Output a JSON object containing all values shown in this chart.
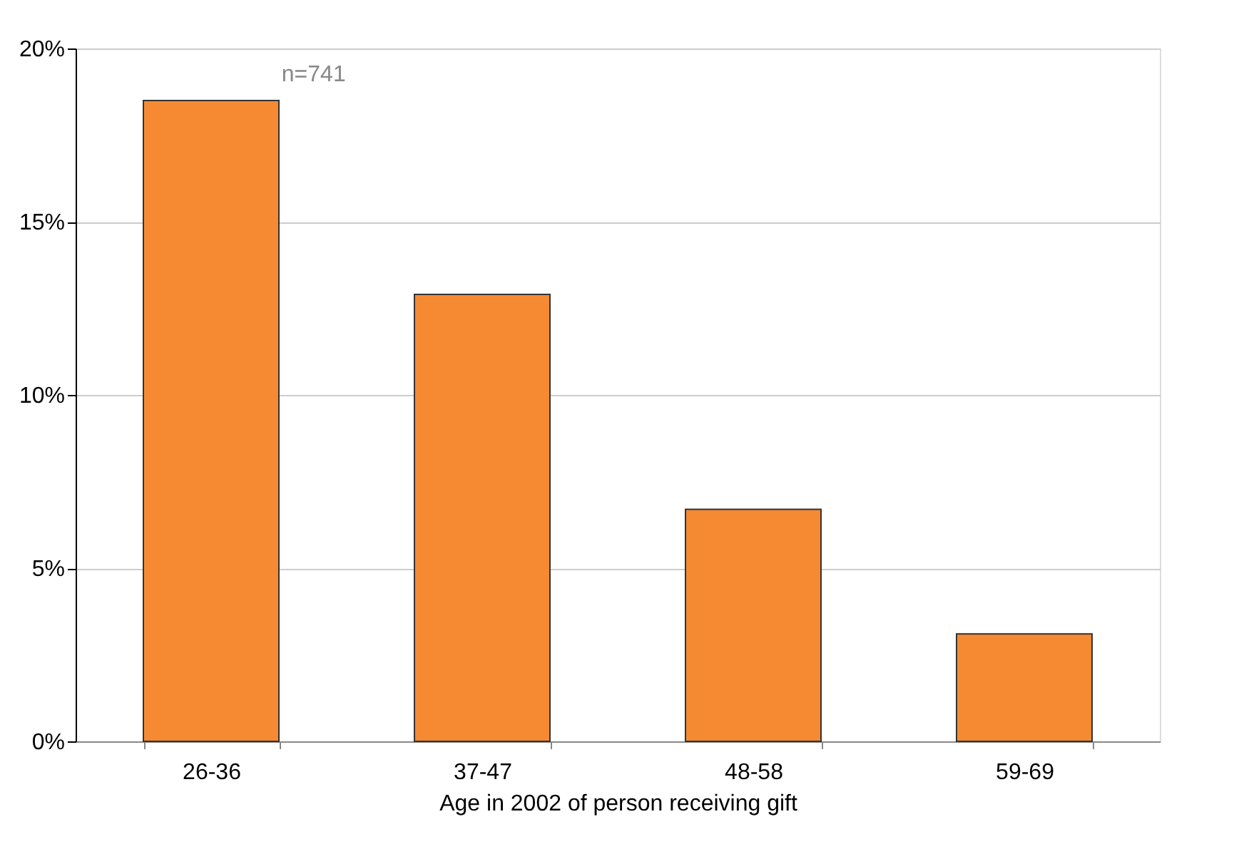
{
  "chart_data": {
    "type": "bar",
    "xlabel": "Age in 2002 of person receiving gift",
    "categories": [
      "26-36",
      "37-47",
      "48-58",
      "59-69"
    ],
    "values": [
      18.5,
      12.9,
      6.7,
      3.1
    ],
    "color": "#f58a33",
    "ylim": [
      0,
      20
    ],
    "yticks": [
      {
        "value": 0,
        "label": "0%"
      },
      {
        "value": 5,
        "label": "5%"
      },
      {
        "value": 10,
        "label": "10%"
      },
      {
        "value": 15,
        "label": "15%"
      },
      {
        "value": 20,
        "label": "20%"
      }
    ],
    "grid": "y",
    "annotations": [
      "n=741"
    ]
  }
}
